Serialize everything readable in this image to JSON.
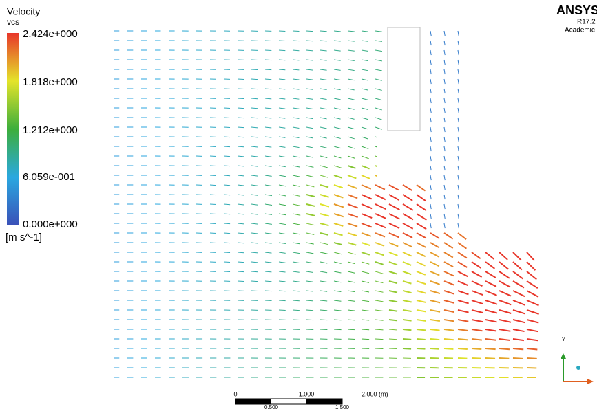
{
  "legend": {
    "title": "Velocity",
    "subtitle": "vcs",
    "labels": [
      "2.424e+000",
      "1.818e+000",
      "1.212e+000",
      "6.059e-001",
      "0.000e+000"
    ],
    "unit": "[m s^-1]"
  },
  "logo": {
    "name": "ANSYS",
    "version": "R17.2",
    "edition": "Academic"
  },
  "scale_bar": {
    "top": [
      "0",
      "1.000",
      "2.000 (m)"
    ],
    "bottom": [
      "0.500",
      "1.500"
    ]
  },
  "triad": {
    "y": "Y"
  }
}
